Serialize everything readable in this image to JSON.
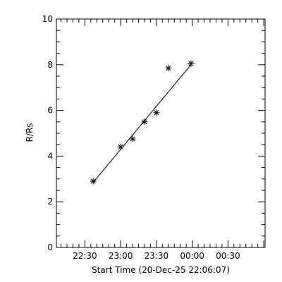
{
  "chart_data": {
    "type": "scatter",
    "title": "",
    "xlabel": "Start Time (20-Dec-25 22:06:07)",
    "ylabel": "R/Rs",
    "x_range": [
      "22:06:07",
      "01:01:07"
    ],
    "ylim": [
      0,
      10
    ],
    "x_ticks": [
      "22:30",
      "23:00",
      "23:30",
      "00:00",
      "00:30"
    ],
    "y_ticks": [
      "0",
      "2",
      "4",
      "6",
      "8",
      "10"
    ],
    "grid": false,
    "marker": "asterisk",
    "colors": {
      "foreground": "#000000",
      "background": "#ffffff"
    },
    "series": [
      {
        "style": "points",
        "x": [
          "22:37",
          "23:00",
          "23:10",
          "23:20",
          "23:30",
          "23:40",
          "23:59"
        ],
        "y": [
          2.9,
          4.4,
          4.75,
          5.5,
          5.9,
          7.85,
          8.05
        ]
      },
      {
        "style": "line",
        "x": [
          "22:37",
          "23:59"
        ],
        "y": [
          2.85,
          8.0
        ]
      }
    ]
  }
}
